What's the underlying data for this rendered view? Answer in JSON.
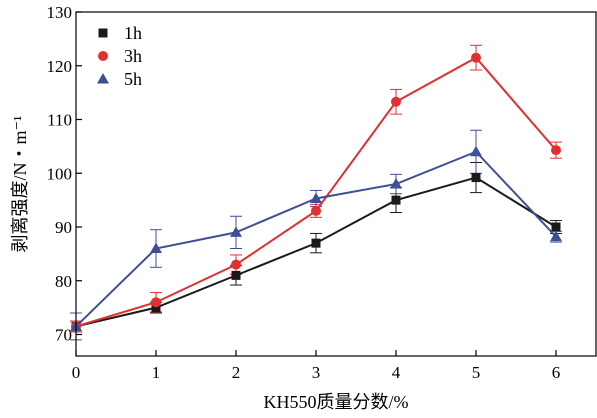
{
  "chart_data": {
    "type": "line",
    "title": "",
    "xlabel": "KH550质量分数/%",
    "ylabel": "剥离强度/N・m⁻¹",
    "xlim": [
      0,
      6.5
    ],
    "ylim": [
      66,
      130
    ],
    "xticks": [
      0,
      1,
      2,
      3,
      4,
      5,
      6
    ],
    "yticks": [
      70,
      80,
      90,
      100,
      110,
      120,
      130
    ],
    "grid": false,
    "legend_position": "top-left",
    "x": [
      0,
      1,
      2,
      3,
      4,
      5,
      6
    ],
    "series": [
      {
        "name": "1h",
        "color": "#1a1a1a",
        "marker": "square",
        "values": [
          71.5,
          75,
          81,
          87,
          95,
          99.2,
          90
        ],
        "errors": [
          1.0,
          1.0,
          1.8,
          1.8,
          2.3,
          2.8,
          1.2
        ]
      },
      {
        "name": "3h",
        "color": "#e03030",
        "marker": "circle",
        "values": [
          71.5,
          76,
          83,
          93,
          113.3,
          121.5,
          104.3
        ],
        "errors": [
          1.0,
          1.8,
          1.8,
          1.2,
          2.3,
          2.3,
          1.5
        ]
      },
      {
        "name": "5h",
        "color": "#3f4f96",
        "marker": "triangle",
        "values": [
          71.5,
          86,
          89,
          95.3,
          98,
          104,
          88.2
        ],
        "errors": [
          2.5,
          3.5,
          3.0,
          1.5,
          1.8,
          4.0,
          1.0
        ]
      }
    ]
  }
}
